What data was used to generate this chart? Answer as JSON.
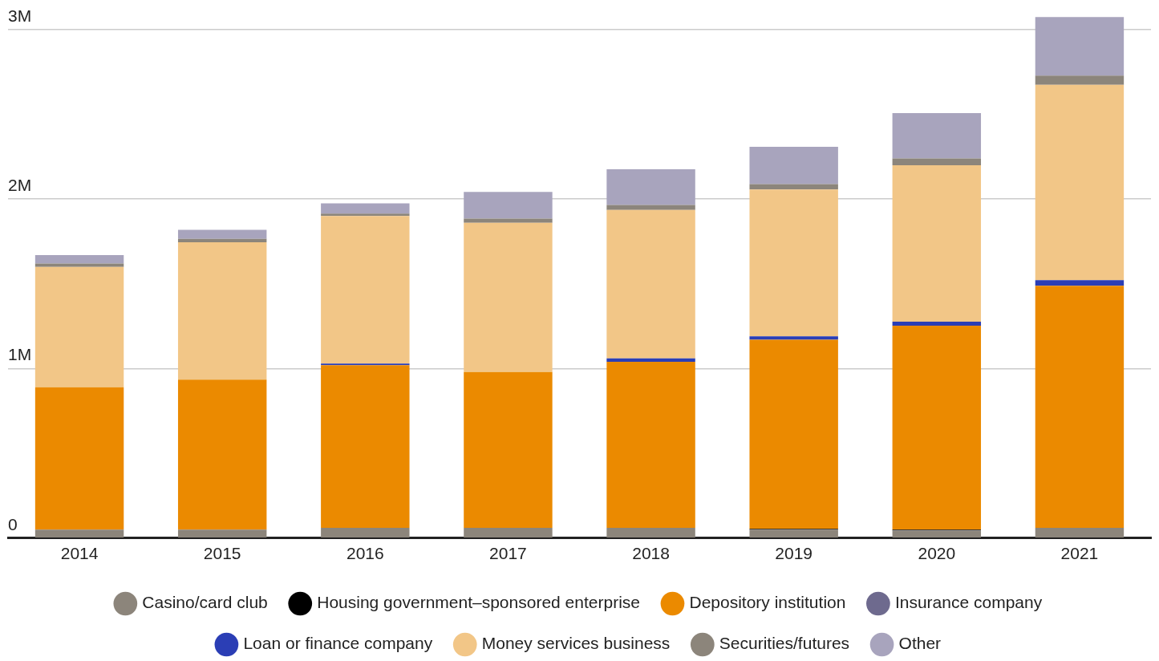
{
  "chart_data": {
    "type": "bar",
    "stacked": true,
    "categories": [
      "2014",
      "2015",
      "2016",
      "2017",
      "2018",
      "2019",
      "2020",
      "2021"
    ],
    "series": [
      {
        "name": "Casino/card club",
        "color": "#8c857b",
        "values": [
          50000,
          50000,
          60000,
          60000,
          60000,
          50000,
          45000,
          60000
        ]
      },
      {
        "name": "Housing government–sponsored enterprise",
        "color": "#000000",
        "values": [
          0,
          0,
          0,
          0,
          0,
          5000,
          5000,
          0
        ]
      },
      {
        "name": "Depository institution",
        "color": "#eb8a00",
        "values": [
          840000,
          885000,
          960000,
          920000,
          980000,
          1115000,
          1203000,
          1429000
        ]
      },
      {
        "name": "Insurance company",
        "color": "#6e6a8e",
        "values": [
          0,
          0,
          0,
          0,
          0,
          0,
          0,
          0
        ]
      },
      {
        "name": "Loan or finance company",
        "color": "#2b3eb5",
        "values": [
          0,
          0,
          10000,
          0,
          20000,
          20000,
          24000,
          33000
        ]
      },
      {
        "name": "Money services business",
        "color": "#f2c687",
        "values": [
          710000,
          810000,
          870000,
          880000,
          876000,
          867000,
          923000,
          1152000
        ]
      },
      {
        "name": "Securities/futures",
        "color": "#8c857b",
        "values": [
          20000,
          20000,
          15000,
          25000,
          30000,
          31000,
          40000,
          55000
        ]
      },
      {
        "name": "Other",
        "color": "#a8a4bd",
        "values": [
          50000,
          54000,
          60000,
          157000,
          210000,
          220000,
          267000,
          345000
        ]
      }
    ],
    "ylim": [
      0,
      3080000
    ],
    "yticks": [
      {
        "value": 0,
        "label": "0"
      },
      {
        "value": 1000000,
        "label": "1M"
      },
      {
        "value": 2000000,
        "label": "2M"
      },
      {
        "value": 3000000,
        "label": "3M"
      }
    ],
    "grid": "y",
    "legend": "bottom",
    "marker": "circle"
  }
}
